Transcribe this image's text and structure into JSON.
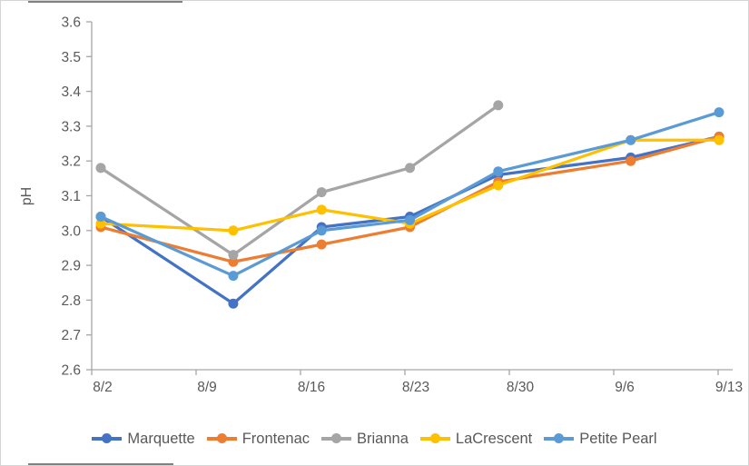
{
  "chart_data": {
    "type": "line",
    "title": "",
    "xlabel": "",
    "ylabel": "pH",
    "ylim": [
      2.6,
      3.6
    ],
    "y_tick_labels": [
      "2.6",
      "2.7",
      "2.8",
      "2.9",
      "3.0",
      "3.1",
      "3.2",
      "3.3",
      "3.4",
      "3.5",
      "3.6"
    ],
    "x_tick_labels": [
      "8/2",
      "8/9",
      "8/16",
      "8/23",
      "8/30",
      "9/6",
      "9/13"
    ],
    "x_point_dates": [
      "8/2",
      "8/11",
      "8/17",
      "8/23",
      "8/29",
      "9/7",
      "9/13"
    ],
    "grid": false,
    "legend_position": "bottom",
    "axis_color": "#a6a6a6",
    "text_color": "#595959",
    "series": [
      {
        "name": "Marquette",
        "color": "#4472C4",
        "x_days": [
          0,
          9,
          15,
          21,
          27,
          36,
          42
        ],
        "values": [
          3.04,
          2.79,
          3.01,
          3.04,
          3.16,
          3.21,
          3.27
        ]
      },
      {
        "name": "Frontenac",
        "color": "#ED7D31",
        "x_days": [
          0,
          9,
          15,
          21,
          27,
          36,
          42
        ],
        "values": [
          3.01,
          2.91,
          2.96,
          3.01,
          3.14,
          3.2,
          3.27
        ]
      },
      {
        "name": "Brianna",
        "color": "#A5A5A5",
        "x_days": [
          0,
          9,
          15,
          21,
          27
        ],
        "values": [
          3.18,
          2.93,
          3.11,
          3.18,
          3.36
        ]
      },
      {
        "name": "LaCrescent",
        "color": "#FFC000",
        "x_days": [
          0,
          9,
          15,
          21,
          27,
          36,
          42
        ],
        "values": [
          3.02,
          3.0,
          3.06,
          3.02,
          3.13,
          3.26,
          3.26
        ]
      },
      {
        "name": "Petite Pearl",
        "color": "#5B9BD5",
        "x_days": [
          0,
          9,
          15,
          21,
          27,
          36,
          42
        ],
        "values": [
          3.04,
          2.87,
          3.0,
          3.03,
          3.17,
          3.26,
          3.34
        ]
      }
    ]
  }
}
